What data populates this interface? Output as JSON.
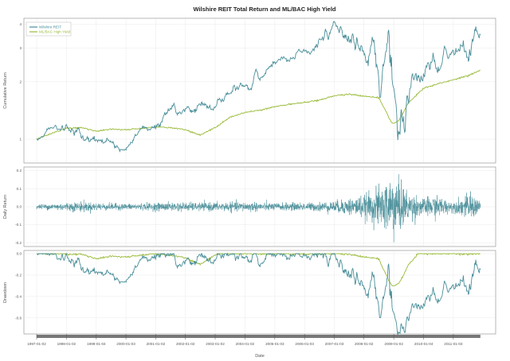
{
  "chart_data": {
    "type": "line",
    "title": "Wilshire REIT Total Return and ML/BAC High Yield",
    "xlabel": "Date",
    "x_range": [
      "1997-01-02",
      "2012-01-01"
    ],
    "x_ticks": [
      "1997-01-02",
      "1998-01-02",
      "1999-01-04",
      "2000-01-03",
      "2001-01-02",
      "2002-01-02",
      "2003-01-02",
      "2004-01-02",
      "2005-01-03",
      "2006-01-03",
      "2007-01-03",
      "2008-01-02",
      "2009-01-02",
      "2010-01-04",
      "2011-01-03"
    ],
    "colors": {
      "reit": "#4a8f9a",
      "hy": "#9abb3a",
      "grid": "#cccccc"
    },
    "legend": {
      "placement": "top-left",
      "entries": [
        "Wilshire REIT",
        "ML/BAC High Yield"
      ]
    },
    "panels": [
      {
        "id": "cumulative",
        "ylabel": "Cumulative Return",
        "ylog": true,
        "ylim": [
          0.75,
          4.3
        ],
        "yticks": [
          1,
          2,
          3,
          4
        ],
        "grid": true,
        "series": [
          {
            "name": "Wilshire REIT",
            "x": [
              "1997-01-02",
              "1997-07-01",
              "1998-01-02",
              "1998-07-01",
              "1999-01-04",
              "1999-07-01",
              "2000-01-03",
              "2000-07-03",
              "2001-01-02",
              "2001-07-02",
              "2002-01-02",
              "2002-07-01",
              "2003-01-02",
              "2003-07-01",
              "2004-01-02",
              "2004-07-01",
              "2005-01-03",
              "2005-07-01",
              "2006-01-03",
              "2006-07-03",
              "2007-02-01",
              "2007-07-02",
              "2008-01-02",
              "2008-07-01",
              "2009-01-02",
              "2009-03-06",
              "2009-07-01",
              "2010-01-04",
              "2010-07-01",
              "2011-01-03",
              "2011-07-01",
              "2011-12-01"
            ],
            "values": [
              1.0,
              1.12,
              1.18,
              1.03,
              0.95,
              1.02,
              0.9,
              1.15,
              1.2,
              1.3,
              1.4,
              1.5,
              1.45,
              1.7,
              1.95,
              2.05,
              2.4,
              2.6,
              2.8,
              3.1,
              4.05,
              3.6,
              3.1,
              2.95,
              1.7,
              1.05,
              1.5,
              2.0,
              2.4,
              2.9,
              3.2,
              3.5
            ]
          },
          {
            "name": "ML/BAC High Yield",
            "x": [
              "1997-01-02",
              "1997-07-01",
              "1998-01-02",
              "1998-07-01",
              "1999-01-04",
              "1999-07-01",
              "2000-01-03",
              "2000-07-03",
              "2001-01-02",
              "2001-07-02",
              "2002-01-02",
              "2002-07-01",
              "2003-01-02",
              "2003-07-01",
              "2004-01-02",
              "2004-07-01",
              "2005-01-03",
              "2005-07-01",
              "2006-01-03",
              "2006-07-03",
              "2007-02-01",
              "2007-07-02",
              "2008-01-02",
              "2008-07-01",
              "2008-12-15",
              "2009-03-06",
              "2009-07-01",
              "2010-01-04",
              "2010-07-01",
              "2011-01-03",
              "2011-07-01",
              "2011-12-01"
            ],
            "values": [
              1.0,
              1.07,
              1.14,
              1.15,
              1.1,
              1.13,
              1.12,
              1.14,
              1.16,
              1.15,
              1.12,
              1.05,
              1.15,
              1.3,
              1.38,
              1.42,
              1.48,
              1.52,
              1.56,
              1.6,
              1.7,
              1.72,
              1.68,
              1.65,
              1.2,
              1.25,
              1.55,
              1.85,
              1.95,
              2.05,
              2.15,
              2.3
            ]
          }
        ]
      },
      {
        "id": "daily",
        "ylabel": "Daily Return",
        "ylim": [
          -0.22,
          0.22
        ],
        "yticks": [
          -0.2,
          -0.1,
          0.0,
          0.1,
          0.2
        ],
        "grid": true,
        "volatility": {
          "x": [
            "1997-01-02",
            "1998-08-01",
            "1998-11-01",
            "2000-01-03",
            "2001-09-11",
            "2002-07-01",
            "2004-04-01",
            "2005-01-03",
            "2006-05-01",
            "2007-02-01",
            "2007-08-01",
            "2008-01-02",
            "2008-09-15",
            "2008-11-20",
            "2009-03-06",
            "2009-07-01",
            "2010-01-04",
            "2010-05-06",
            "2011-01-03",
            "2011-08-08",
            "2011-12-01"
          ],
          "values": [
            0.006,
            0.014,
            0.011,
            0.008,
            0.012,
            0.011,
            0.013,
            0.01,
            0.011,
            0.016,
            0.024,
            0.03,
            0.06,
            0.09,
            0.07,
            0.04,
            0.022,
            0.03,
            0.014,
            0.035,
            0.02
          ]
        }
      },
      {
        "id": "drawdown",
        "ylabel": "Drawdown",
        "ylim": [
          -0.75,
          0.03
        ],
        "yticks": [
          0.0,
          -0.2,
          -0.4,
          -0.6
        ],
        "grid": true,
        "series": [
          {
            "name": "Wilshire REIT",
            "derived_from": "cumulative"
          },
          {
            "name": "ML/BAC High Yield",
            "derived_from": "cumulative"
          }
        ]
      }
    ]
  }
}
